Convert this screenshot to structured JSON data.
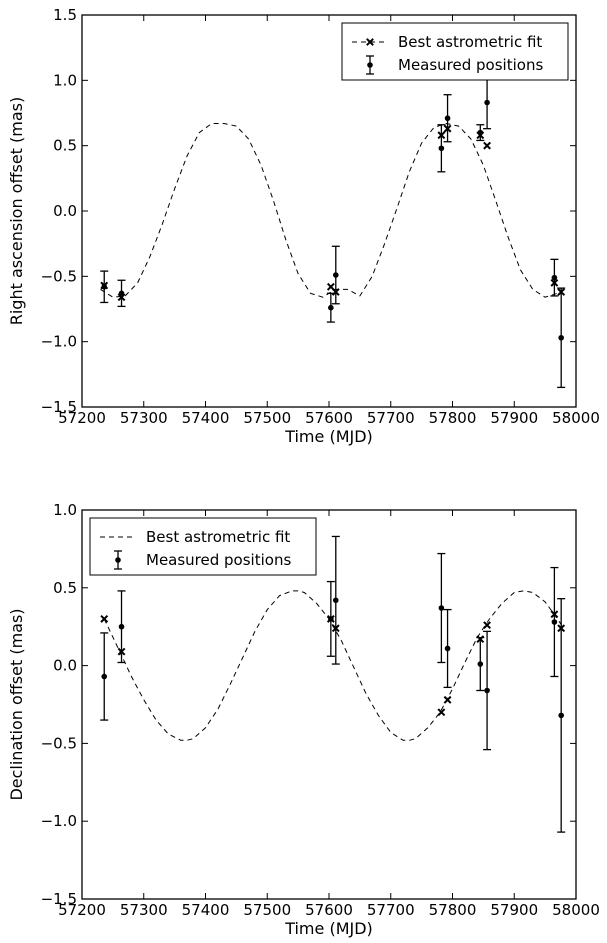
{
  "chart_data": [
    {
      "type": "line",
      "xlabel": "Time (MJD)",
      "ylabel": "Right ascension offset (mas)",
      "xlim": [
        57200,
        58000
      ],
      "ylim": [
        -1.5,
        1.5
      ],
      "xticks": [
        57200,
        57300,
        57400,
        57500,
        57600,
        57700,
        57800,
        57900,
        58000
      ],
      "yticks": [
        -1.5,
        -1.0,
        -0.5,
        0.0,
        0.5,
        1.0,
        1.5
      ],
      "xtick_labels": [
        "57200",
        "57300",
        "57400",
        "57500",
        "57600",
        "57700",
        "57800",
        "57900",
        "58000"
      ],
      "ytick_labels": [
        "−1.5",
        "−1.0",
        "−0.5",
        "0.0",
        "0.5",
        "1.0",
        "1.5"
      ],
      "legend_position": "top-right",
      "fit": {
        "name": "Best astrometric fit",
        "style": "dashed",
        "x": [
          57230,
          57250,
          57270,
          57290,
          57310,
          57330,
          57350,
          57370,
          57390,
          57410,
          57430,
          57450,
          57470,
          57490,
          57510,
          57530,
          57550,
          57570,
          57590,
          57610,
          57630,
          57650,
          57670,
          57690,
          57710,
          57730,
          57750,
          57770,
          57790,
          57810,
          57830,
          57850,
          57870,
          57890,
          57910,
          57930,
          57950,
          57970,
          57980
        ],
        "y": [
          -0.6,
          -0.66,
          -0.65,
          -0.55,
          -0.35,
          -0.1,
          0.17,
          0.42,
          0.6,
          0.67,
          0.67,
          0.65,
          0.55,
          0.35,
          0.08,
          -0.22,
          -0.48,
          -0.63,
          -0.66,
          -0.6,
          -0.6,
          -0.65,
          -0.5,
          -0.25,
          0.02,
          0.3,
          0.52,
          0.64,
          0.67,
          0.65,
          0.55,
          0.35,
          0.08,
          -0.2,
          -0.45,
          -0.6,
          -0.66,
          -0.63,
          -0.6
        ],
        "markers": [
          {
            "x": 57236,
            "y": -0.57
          },
          {
            "x": 57264,
            "y": -0.66
          },
          {
            "x": 57603,
            "y": -0.58
          },
          {
            "x": 57611,
            "y": -0.62
          },
          {
            "x": 57782,
            "y": 0.58
          },
          {
            "x": 57792,
            "y": 0.63
          },
          {
            "x": 57845,
            "y": 0.58
          },
          {
            "x": 57856,
            "y": 0.5
          },
          {
            "x": 57965,
            "y": -0.55
          },
          {
            "x": 57976,
            "y": -0.62
          }
        ]
      },
      "measured": {
        "name": "Measured positions",
        "points": [
          {
            "x": 57236,
            "y": -0.58,
            "err": 0.12
          },
          {
            "x": 57264,
            "y": -0.63,
            "err": 0.1
          },
          {
            "x": 57603,
            "y": -0.74,
            "err": 0.11
          },
          {
            "x": 57611,
            "y": -0.49,
            "err": 0.22
          },
          {
            "x": 57782,
            "y": 0.48,
            "err": 0.18
          },
          {
            "x": 57792,
            "y": 0.71,
            "err": 0.18
          },
          {
            "x": 57845,
            "y": 0.6,
            "err": 0.06
          },
          {
            "x": 57856,
            "y": 0.83,
            "err": 0.2
          },
          {
            "x": 57965,
            "y": -0.51,
            "err": 0.14
          },
          {
            "x": 57976,
            "y": -0.97,
            "err": 0.38
          }
        ]
      }
    },
    {
      "type": "line",
      "xlabel": "Time (MJD)",
      "ylabel": "Declination offset (mas)",
      "xlim": [
        57200,
        58000
      ],
      "ylim": [
        -1.5,
        1.0
      ],
      "xticks": [
        57200,
        57300,
        57400,
        57500,
        57600,
        57700,
        57800,
        57900,
        58000
      ],
      "yticks": [
        -1.5,
        -1.0,
        -0.5,
        0.0,
        0.5,
        1.0
      ],
      "xtick_labels": [
        "57200",
        "57300",
        "57400",
        "57500",
        "57600",
        "57700",
        "57800",
        "57900",
        "58000"
      ],
      "ytick_labels": [
        "−1.5",
        "−1.0",
        "−0.5",
        "0.0",
        "0.5",
        "1.0"
      ],
      "legend_position": "top-left",
      "fit": {
        "name": "Best astrometric fit",
        "style": "dashed",
        "x": [
          57236,
          57260,
          57280,
          57300,
          57320,
          57340,
          57360,
          57370,
          57380,
          57400,
          57420,
          57440,
          57460,
          57480,
          57500,
          57520,
          57540,
          57550,
          57560,
          57580,
          57600,
          57620,
          57640,
          57660,
          57680,
          57700,
          57720,
          57730,
          57740,
          57760,
          57780,
          57800,
          57820,
          57840,
          57860,
          57880,
          57900,
          57915,
          57930,
          57950,
          57970,
          57980
        ],
        "y": [
          0.3,
          0.1,
          -0.07,
          -0.22,
          -0.35,
          -0.44,
          -0.48,
          -0.48,
          -0.47,
          -0.4,
          -0.28,
          -0.12,
          0.05,
          0.22,
          0.36,
          0.45,
          0.48,
          0.48,
          0.47,
          0.4,
          0.3,
          0.16,
          -0.01,
          -0.18,
          -0.32,
          -0.43,
          -0.48,
          -0.48,
          -0.47,
          -0.4,
          -0.3,
          -0.15,
          0.02,
          0.18,
          0.3,
          0.4,
          0.47,
          0.48,
          0.47,
          0.41,
          0.3,
          0.24
        ]
      },
      "fit_markers": [
        {
          "x": 57236,
          "y": 0.3
        },
        {
          "x": 57264,
          "y": 0.09
        },
        {
          "x": 57603,
          "y": 0.3
        },
        {
          "x": 57611,
          "y": 0.24
        },
        {
          "x": 57782,
          "y": -0.3
        },
        {
          "x": 57792,
          "y": -0.22
        },
        {
          "x": 57845,
          "y": 0.17
        },
        {
          "x": 57856,
          "y": 0.26
        },
        {
          "x": 57965,
          "y": 0.33
        },
        {
          "x": 57976,
          "y": 0.24
        }
      ],
      "measured": {
        "name": "Measured positions",
        "points": [
          {
            "x": 57236,
            "y": -0.07,
            "err": 0.28
          },
          {
            "x": 57264,
            "y": 0.25,
            "err": 0.23
          },
          {
            "x": 57603,
            "y": 0.3,
            "err": 0.24
          },
          {
            "x": 57611,
            "y": 0.42,
            "err": 0.41
          },
          {
            "x": 57782,
            "y": 0.37,
            "err": 0.35
          },
          {
            "x": 57792,
            "y": 0.11,
            "err": 0.25
          },
          {
            "x": 57845,
            "y": 0.01,
            "err": 0.17
          },
          {
            "x": 57856,
            "y": -0.16,
            "err": 0.38
          },
          {
            "x": 57965,
            "y": 0.28,
            "err": 0.35
          },
          {
            "x": 57976,
            "y": -0.32,
            "err": 0.75
          }
        ]
      }
    }
  ]
}
